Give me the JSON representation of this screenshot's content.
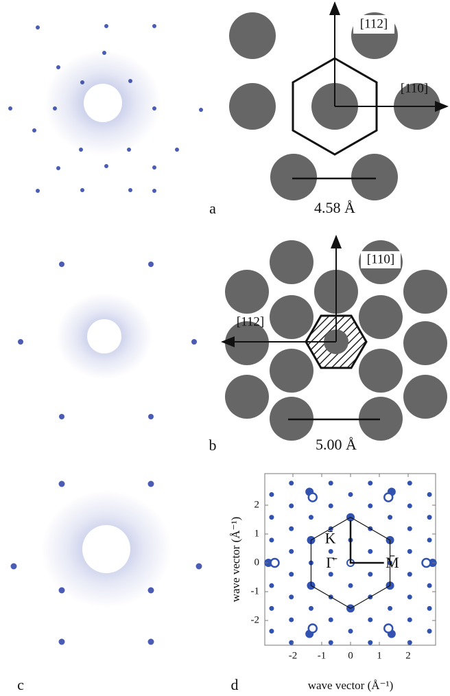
{
  "panels": [
    {
      "label": "a",
      "annotations": [
        "[112]",
        "[110]"
      ],
      "scale": "4.58 Å"
    },
    {
      "label": "b",
      "annotations": [
        "[110]",
        "[112]"
      ],
      "scale": "5.00 Å"
    },
    {
      "label": "c"
    },
    {
      "label": "d",
      "x_axis_label": "wave vector (Å⁻¹)",
      "y_axis_label": "wave vector (Å⁻¹)",
      "x_ticks": [
        "-2",
        "-1",
        "0",
        "1",
        "2"
      ],
      "y_ticks": [
        "2",
        "1",
        "0",
        "-1",
        "-2"
      ],
      "points": [
        "K̄",
        "Γ̄",
        "M̄"
      ]
    }
  ]
}
